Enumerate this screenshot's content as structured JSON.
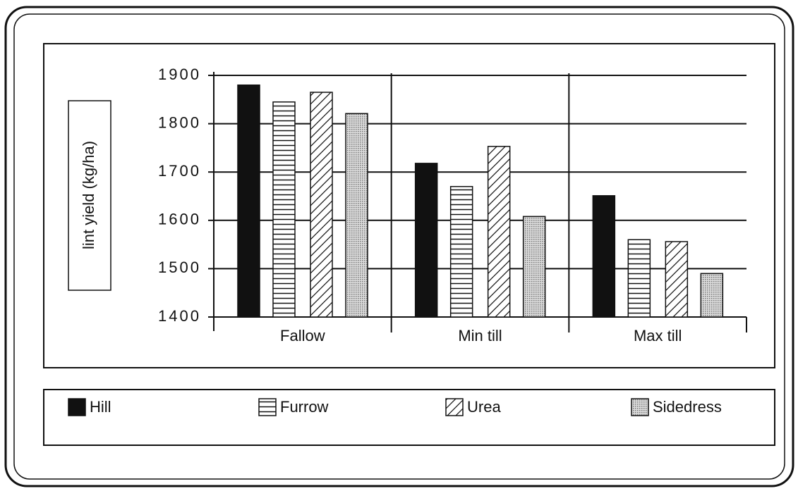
{
  "chart_data": {
    "type": "bar",
    "y_label": "lint yield (kg/ha)",
    "categories": [
      "Fallow",
      "Min  till",
      "Max  till"
    ],
    "series": [
      {
        "name": "Hill",
        "color": "#111111",
        "pattern": "solid",
        "values": [
          1880,
          1718,
          1651
        ]
      },
      {
        "name": "Furrow",
        "color": "#111111",
        "pattern": "horizontal",
        "values": [
          1845,
          1670,
          1560
        ]
      },
      {
        "name": "Urea",
        "color": "#111111",
        "pattern": "diagonal",
        "values": [
          1865,
          1753,
          1556
        ]
      },
      {
        "name": "Sidedress",
        "color": "#999999",
        "pattern": "dots",
        "values": [
          1821,
          1608,
          1490
        ]
      }
    ],
    "ylim": [
      1400,
      1900
    ],
    "yticks": [
      1400,
      1500,
      1600,
      1700,
      1800,
      1900
    ],
    "grid": true
  }
}
